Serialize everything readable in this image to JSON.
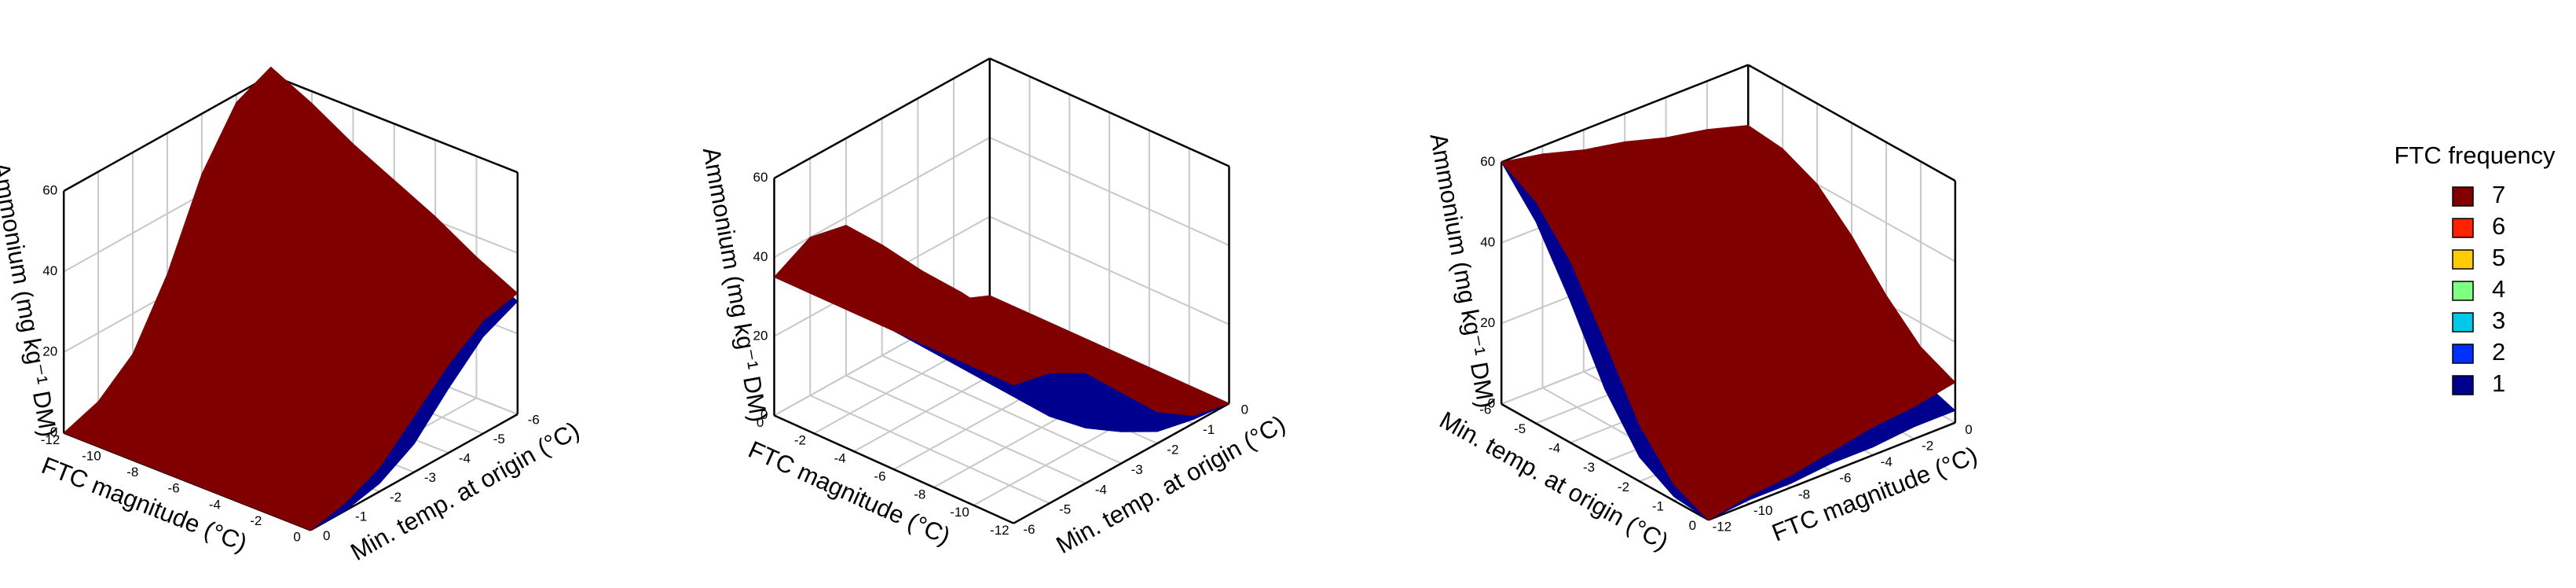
{
  "chart_data": [
    {
      "type": "surface3d",
      "xlabel": "FTC magnitude (°C)",
      "ylabel": "Min. temp. at origin (°C)",
      "zlabel": "Ammonium (mg kg⁻¹ DM)",
      "xlim": [
        -12,
        0
      ],
      "ylim": [
        -6,
        0
      ],
      "zlim": [
        0,
        60
      ],
      "xticks": [
        -12,
        -10,
        -8,
        -6,
        -4,
        -2,
        0
      ],
      "yticks": [
        -6,
        -5,
        -4,
        -3,
        -2,
        -1,
        0
      ],
      "zticks": [
        0,
        20,
        40,
        60
      ],
      "x": [
        -12,
        -10,
        -8,
        -6,
        -4,
        -2,
        0
      ],
      "y": [
        -6,
        -5,
        -4,
        -3,
        -2,
        -1,
        0
      ],
      "surfaces": [
        {
          "level": 1,
          "z": [
            [
              60,
              54,
              38,
              15,
              3,
              0,
              0
            ],
            [
              55,
              49,
              35,
              14,
              3,
              0,
              0
            ],
            [
              50,
              44,
              31,
              12,
              3,
              0,
              0
            ],
            [
              44,
              39,
              27,
              11,
              2,
              0,
              0
            ],
            [
              39,
              34,
              24,
              10,
              2,
              0,
              0
            ],
            [
              33,
              29,
              20,
              8,
              2,
              0,
              0
            ],
            [
              28,
              24,
              16,
              7,
              2,
              0,
              0
            ]
          ]
        },
        {
          "level": 7,
          "z": [
            [
              62,
              58,
              45,
              25,
              10,
              3,
              0
            ],
            [
              57,
              53,
              41,
              23,
              9,
              3,
              0
            ],
            [
              51,
              48,
              37,
              21,
              9,
              3,
              0
            ],
            [
              46,
              43,
              34,
              20,
              8,
              3,
              0
            ],
            [
              41,
              38,
              30,
              18,
              7,
              2,
              0
            ],
            [
              35,
              33,
              26,
              16,
              7,
              2,
              0
            ],
            [
              30,
              28,
              22,
              14,
              6,
              2,
              0
            ]
          ]
        }
      ]
    },
    {
      "type": "surface3d",
      "xlabel": "FTC magnitude (°C)",
      "ylabel": "Min. temp. at origin (°C)",
      "zlabel": "Ammonium (mg kg⁻¹ DM)",
      "xlim": [
        -12,
        0
      ],
      "ylim": [
        -6,
        0
      ],
      "zlim": [
        0,
        60
      ],
      "xticks": [
        -12,
        -10,
        -8,
        -6,
        -4,
        -2,
        0
      ],
      "yticks": [
        -6,
        -5,
        -4,
        -3,
        -2,
        -1,
        0
      ],
      "zticks": [
        0,
        20,
        40,
        60
      ],
      "x": [
        -12,
        -10,
        -8,
        -6,
        -4,
        -2,
        0
      ],
      "y": [
        -6,
        -5,
        -4,
        -3,
        -2,
        -1,
        0
      ],
      "surfaces": [
        {
          "level": 1,
          "z": [
            [
              35,
              22,
              14,
              8,
              3,
              1,
              0
            ],
            [
              35,
              23,
              15,
              9,
              3,
              1,
              0
            ],
            [
              35,
              24,
              16,
              9,
              4,
              1,
              0
            ],
            [
              35,
              25,
              17,
              10,
              4,
              1,
              0
            ],
            [
              35,
              26,
              18,
              11,
              4,
              1,
              0
            ],
            [
              35,
              27,
              19,
              11,
              5,
              1,
              0
            ],
            [
              35,
              28,
              20,
              12,
              5,
              1,
              0
            ]
          ]
        },
        {
          "level": 7,
          "z": [
            [
              35,
              33,
              28,
              18,
              8,
              2,
              0
            ],
            [
              35,
              34,
              30,
              20,
              9,
              2,
              0
            ],
            [
              35,
              35,
              31,
              21,
              10,
              3,
              0
            ],
            [
              35,
              36,
              33,
              23,
              11,
              3,
              0
            ],
            [
              35,
              38,
              35,
              25,
              12,
              3,
              0
            ],
            [
              35,
              39,
              36,
              26,
              13,
              4,
              0
            ],
            [
              35,
              40,
              38,
              28,
              14,
              4,
              0
            ]
          ]
        }
      ]
    },
    {
      "type": "surface3d",
      "xlabel": "FTC magnitude (°C)",
      "ylabel": "Min. temp. at origin (°C)",
      "zlabel": "Ammonium (mg kg⁻¹ DM)",
      "xlim": [
        -12,
        0
      ],
      "ylim": [
        -6,
        0
      ],
      "zlim": [
        0,
        60
      ],
      "xticks": [
        -12,
        -10,
        -8,
        -6,
        -4,
        -2,
        0
      ],
      "yticks": [
        -6,
        -5,
        -4,
        -3,
        -2,
        -1,
        0
      ],
      "zticks": [
        0,
        20,
        40,
        60
      ],
      "x": [
        -12,
        -10,
        -8,
        -6,
        -4,
        -2,
        0
      ],
      "y": [
        -6,
        -5,
        -4,
        -3,
        -2,
        -1,
        0
      ],
      "surfaces": [
        {
          "level": 1,
          "z": [
            [
              60,
              50,
              35,
              18,
              6,
              1,
              0
            ],
            [
              57,
              48,
              34,
              18,
              7,
              2,
              1
            ],
            [
              54,
              46,
              33,
              19,
              8,
              3,
              1
            ],
            [
              51,
              44,
              33,
              19,
              9,
              4,
              2
            ],
            [
              48,
              42,
              32,
              19,
              9,
              4,
              2
            ],
            [
              45,
              40,
              31,
              20,
              10,
              5,
              3
            ],
            [
              42,
              38,
              30,
              20,
              11,
              6,
              3
            ]
          ]
        },
        {
          "level": 7,
          "z": [
            [
              60,
              55,
              45,
              30,
              14,
              4,
              0
            ],
            [
              58,
              53,
              44,
              30,
              15,
              6,
              2
            ],
            [
              55,
              51,
              43,
              31,
              17,
              7,
              3
            ],
            [
              53,
              50,
              43,
              31,
              18,
              9,
              5
            ],
            [
              50,
              48,
              42,
              31,
              19,
              10,
              7
            ],
            [
              48,
              46,
              41,
              32,
              21,
              12,
              8
            ],
            [
              45,
              44,
              40,
              32,
              22,
              14,
              10
            ]
          ]
        }
      ]
    }
  ],
  "legend": {
    "title": "FTC frequency",
    "items": [
      {
        "label": "7",
        "color": "#800000"
      },
      {
        "label": "6",
        "color": "#ff2200"
      },
      {
        "label": "5",
        "color": "#ffcc00"
      },
      {
        "label": "4",
        "color": "#80ff80"
      },
      {
        "label": "3",
        "color": "#00c8e8"
      },
      {
        "label": "2",
        "color": "#0030ff"
      },
      {
        "label": "1",
        "color": "#00008f"
      }
    ]
  }
}
